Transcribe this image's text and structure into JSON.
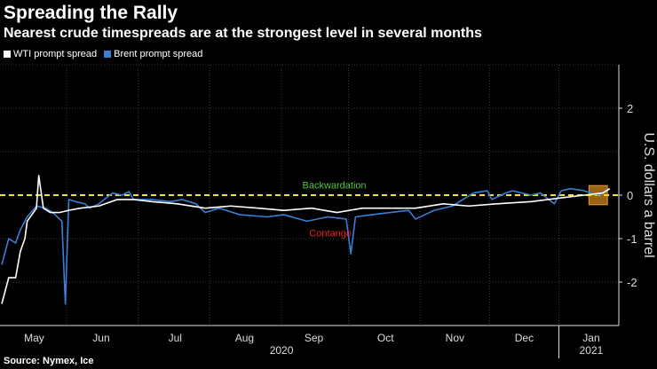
{
  "title": "Spreading the Rally",
  "subtitle": "Nearest crude timespreads are at the strongest level in several months",
  "source": "Source: Nymex, Ice",
  "chart_data": {
    "type": "line",
    "ylabel": "U.S. dollars a barrel",
    "ylim": [
      -3,
      3
    ],
    "xlim": [
      0,
      265
    ],
    "x_unit": "days since 2020-04-20 (approx)",
    "yticks": [
      2,
      0,
      -1,
      -2
    ],
    "ygrid": [
      3,
      2,
      1,
      0,
      -1,
      -2
    ],
    "xticks": [
      {
        "label": "May",
        "x": 14
      },
      {
        "label": "Jun",
        "x": 43
      },
      {
        "label": "Jul",
        "x": 75
      },
      {
        "label": "Aug",
        "x": 105
      },
      {
        "label": "Sep",
        "x": 135
      },
      {
        "label": "Oct",
        "x": 166
      },
      {
        "label": "Nov",
        "x": 196
      },
      {
        "label": "Dec",
        "x": 226
      },
      {
        "label": "Jan",
        "x": 255
      }
    ],
    "xgrid": [
      28,
      59,
      90,
      121,
      150,
      181,
      211,
      241
    ],
    "years": [
      {
        "label": "2020",
        "x": 121
      },
      {
        "label": "2021",
        "x": 255
      }
    ],
    "year_separator": 241,
    "reference_line": 0,
    "annotations": [
      {
        "text": "Backwardation",
        "x": 130,
        "y": 0.15,
        "color": "#4fc83b"
      },
      {
        "text": "Contango",
        "x": 133,
        "y": -0.95,
        "color": "#e8231e"
      }
    ],
    "highlight": {
      "x": [
        254,
        262
      ],
      "y": [
        -0.2,
        0.2
      ],
      "color": "#c27a1c"
    },
    "series": [
      {
        "name": "WTI prompt spread",
        "color": "#ffffff",
        "points": [
          [
            0,
            -2.5
          ],
          [
            3,
            -1.9
          ],
          [
            6,
            -1.9
          ],
          [
            8,
            -1.3
          ],
          [
            10,
            -1.0
          ],
          [
            11,
            -0.6
          ],
          [
            15,
            -0.3
          ],
          [
            16,
            0.45
          ],
          [
            18,
            -0.3
          ],
          [
            21,
            -0.4
          ],
          [
            25,
            -0.4
          ],
          [
            29,
            -0.35
          ],
          [
            34,
            -0.3
          ],
          [
            42,
            -0.25
          ],
          [
            50,
            -0.1
          ],
          [
            57,
            -0.1
          ],
          [
            65,
            -0.15
          ],
          [
            76,
            -0.2
          ],
          [
            88,
            -0.3
          ],
          [
            99,
            -0.25
          ],
          [
            111,
            -0.3
          ],
          [
            122,
            -0.35
          ],
          [
            134,
            -0.3
          ],
          [
            145,
            -0.4
          ],
          [
            156,
            -0.3
          ],
          [
            168,
            -0.3
          ],
          [
            179,
            -0.3
          ],
          [
            191,
            -0.2
          ],
          [
            202,
            -0.25
          ],
          [
            214,
            -0.2
          ],
          [
            229,
            -0.15
          ],
          [
            244,
            -0.05
          ],
          [
            252,
            0
          ],
          [
            260,
            0.05
          ],
          [
            263,
            0.15
          ]
        ]
      },
      {
        "name": "Brent prompt spread",
        "color": "#3a7fd5",
        "points": [
          [
            0,
            -1.6
          ],
          [
            3,
            -1.0
          ],
          [
            6,
            -1.1
          ],
          [
            8,
            -0.8
          ],
          [
            11,
            -0.5
          ],
          [
            15,
            -0.25
          ],
          [
            19,
            -0.3
          ],
          [
            22,
            -0.4
          ],
          [
            26,
            -0.6
          ],
          [
            27.5,
            -2.5
          ],
          [
            29,
            -0.1
          ],
          [
            32,
            -0.15
          ],
          [
            36,
            -0.2
          ],
          [
            38,
            -0.3
          ],
          [
            42,
            -0.2
          ],
          [
            48,
            0.05
          ],
          [
            52,
            0
          ],
          [
            55,
            0.08
          ],
          [
            57,
            -0.1
          ],
          [
            65,
            -0.1
          ],
          [
            73,
            -0.15
          ],
          [
            78,
            -0.1
          ],
          [
            84,
            -0.2
          ],
          [
            88,
            -0.4
          ],
          [
            94,
            -0.3
          ],
          [
            103,
            -0.45
          ],
          [
            115,
            -0.5
          ],
          [
            122,
            -0.45
          ],
          [
            132,
            -0.6
          ],
          [
            141,
            -0.5
          ],
          [
            149,
            -0.55
          ],
          [
            151,
            -1.35
          ],
          [
            153,
            -0.5
          ],
          [
            160,
            -0.45
          ],
          [
            168,
            -0.4
          ],
          [
            176,
            -0.35
          ],
          [
            179,
            -0.55
          ],
          [
            187,
            -0.35
          ],
          [
            195,
            -0.25
          ],
          [
            198,
            -0.15
          ],
          [
            204,
            0.05
          ],
          [
            210,
            0.1
          ],
          [
            212,
            -0.1
          ],
          [
            218,
            0.05
          ],
          [
            221,
            0.1
          ],
          [
            229,
            0
          ],
          [
            233,
            0.05
          ],
          [
            239,
            -0.2
          ],
          [
            242,
            0.1
          ],
          [
            246,
            0.15
          ],
          [
            252,
            0.1
          ],
          [
            258,
            0
          ],
          [
            263,
            0.15
          ]
        ]
      }
    ]
  }
}
